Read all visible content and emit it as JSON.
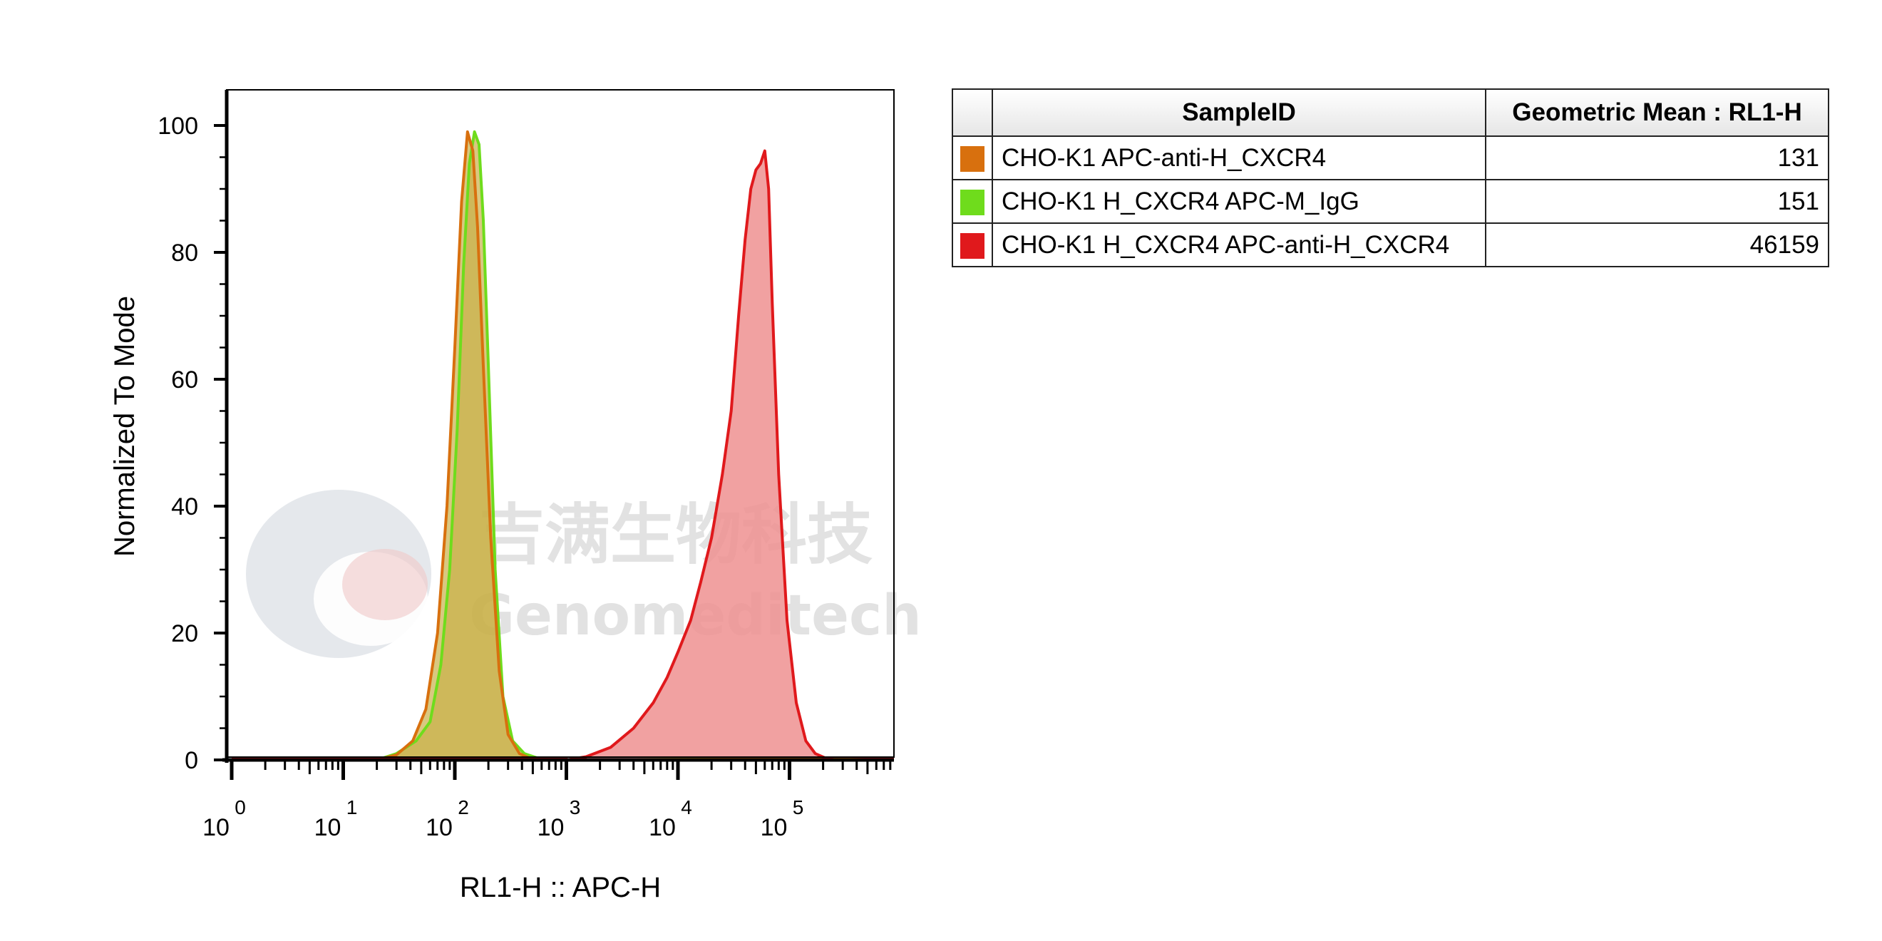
{
  "colors": {
    "series_orange": "#d8700e",
    "series_green": "#6fdc1c",
    "series_red": "#e0191c",
    "fill_orange": "#c9b04a",
    "fill_red": "#ee9090"
  },
  "watermark": {
    "chinese": "吉满生物科技",
    "english": "Genomeditech"
  },
  "legend_table": {
    "headers": [
      "",
      "SampleID",
      "Geometric Mean : RL1-H"
    ],
    "rows": [
      {
        "color": "#d8700e",
        "sample": "CHO-K1 APC-anti-H_CXCR4",
        "mean": "131"
      },
      {
        "color": "#6fdc1c",
        "sample": "CHO-K1 H_CXCR4 APC-M_IgG",
        "mean": "151"
      },
      {
        "color": "#e0191c",
        "sample": "CHO-K1 H_CXCR4 APC-anti-H_CXCR4",
        "mean": "46159"
      }
    ]
  },
  "chart_data": {
    "type": "area",
    "xlabel": "RL1-H :: APC-H",
    "ylabel": "Normalized To Mode",
    "x_scale": "log",
    "x_ticks": [
      {
        "base": "10",
        "exp": "0"
      },
      {
        "base": "10",
        "exp": "1"
      },
      {
        "base": "10",
        "exp": "2"
      },
      {
        "base": "10",
        "exp": "3"
      },
      {
        "base": "10",
        "exp": "4"
      },
      {
        "base": "10",
        "exp": "5"
      }
    ],
    "y_ticks": [
      "0",
      "20",
      "40",
      "60",
      "80",
      "100"
    ],
    "ylim": [
      0,
      100
    ],
    "grid": false,
    "series": [
      {
        "name": "CHO-K1 H_CXCR4 APC-M_IgG",
        "color": "#6fdc1c",
        "fill": "#c9b04a",
        "x": [
          20,
          30,
          45,
          60,
          75,
          90,
          105,
          120,
          135,
          150,
          165,
          180,
          200,
          230,
          270,
          330,
          420,
          550,
          700
        ],
        "y": [
          0,
          1,
          3,
          6,
          15,
          30,
          52,
          78,
          94,
          99,
          97,
          85,
          62,
          30,
          10,
          3,
          1,
          0.3,
          0
        ]
      },
      {
        "name": "CHO-K1 APC-anti-H_CXCR4",
        "color": "#d8700e",
        "fill": "#c9b04a",
        "x": [
          20,
          30,
          42,
          55,
          70,
          85,
          100,
          115,
          130,
          145,
          160,
          180,
          210,
          250,
          300,
          380,
          480,
          600
        ],
        "y": [
          0,
          0.8,
          3,
          8,
          20,
          40,
          65,
          88,
          99,
          96,
          84,
          62,
          35,
          14,
          4,
          1,
          0.2,
          0
        ]
      },
      {
        "name": "CHO-K1 H_CXCR4 APC-anti-H_CXCR4",
        "color": "#e0191c",
        "fill": "#ee9090",
        "x": [
          1000,
          1500,
          2500,
          4000,
          6000,
          8000,
          10000,
          13000,
          16000,
          20000,
          25000,
          30000,
          35000,
          40000,
          45000,
          50000,
          55000,
          60000,
          65000,
          70000,
          80000,
          95000,
          115000,
          140000,
          170000,
          210000,
          260000
        ],
        "y": [
          0,
          0.5,
          2,
          5,
          9,
          13,
          17,
          22,
          28,
          35,
          45,
          55,
          70,
          82,
          90,
          93,
          94,
          96,
          90,
          72,
          45,
          22,
          9,
          3,
          1,
          0.3,
          0
        ]
      }
    ]
  }
}
